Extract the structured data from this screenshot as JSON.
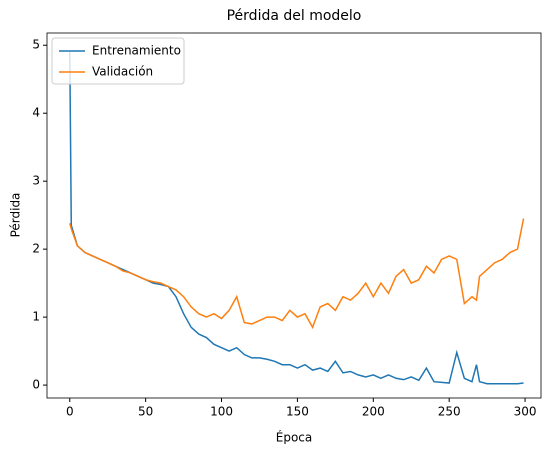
{
  "chart_data": {
    "type": "line",
    "title": "Pérdida del modelo",
    "x_label": "Época",
    "y_label": "Pérdida",
    "x": [
      0,
      1,
      5,
      10,
      15,
      20,
      25,
      30,
      35,
      40,
      45,
      50,
      55,
      60,
      65,
      70,
      75,
      80,
      85,
      90,
      95,
      100,
      105,
      110,
      115,
      120,
      125,
      130,
      135,
      140,
      145,
      150,
      155,
      160,
      165,
      170,
      175,
      180,
      185,
      190,
      195,
      200,
      205,
      210,
      215,
      220,
      225,
      230,
      235,
      240,
      245,
      250,
      255,
      260,
      265,
      268,
      270,
      275,
      280,
      285,
      290,
      295,
      299
    ],
    "series": [
      {
        "name": "Entrenamiento",
        "color": "#1f77b4",
        "values": [
          4.9,
          2.35,
          2.05,
          1.95,
          1.9,
          1.85,
          1.8,
          1.75,
          1.7,
          1.65,
          1.6,
          1.55,
          1.5,
          1.48,
          1.45,
          1.3,
          1.05,
          0.85,
          0.75,
          0.7,
          0.6,
          0.55,
          0.5,
          0.55,
          0.45,
          0.4,
          0.4,
          0.38,
          0.35,
          0.3,
          0.3,
          0.25,
          0.3,
          0.22,
          0.25,
          0.2,
          0.35,
          0.18,
          0.2,
          0.15,
          0.12,
          0.15,
          0.1,
          0.15,
          0.1,
          0.08,
          0.12,
          0.07,
          0.25,
          0.05,
          0.04,
          0.03,
          0.48,
          0.1,
          0.05,
          0.3,
          0.05,
          0.02,
          0.02,
          0.02,
          0.02,
          0.02,
          0.03
        ]
      },
      {
        "name": "Validación",
        "color": "#ff7f0e",
        "values": [
          2.38,
          2.3,
          2.05,
          1.95,
          1.9,
          1.85,
          1.8,
          1.75,
          1.68,
          1.65,
          1.6,
          1.55,
          1.52,
          1.5,
          1.45,
          1.4,
          1.3,
          1.15,
          1.05,
          1.0,
          1.05,
          0.98,
          1.1,
          1.3,
          0.92,
          0.9,
          0.95,
          1.0,
          1.0,
          0.95,
          1.1,
          1.0,
          1.05,
          0.85,
          1.15,
          1.2,
          1.1,
          1.3,
          1.25,
          1.35,
          1.5,
          1.3,
          1.5,
          1.35,
          1.6,
          1.7,
          1.5,
          1.55,
          1.75,
          1.65,
          1.85,
          1.9,
          1.85,
          1.2,
          1.3,
          1.25,
          1.6,
          1.7,
          1.8,
          1.85,
          1.95,
          2.0,
          2.45
        ]
      }
    ],
    "xlim": [
      -15,
      310.5
    ],
    "ylim": [
      -0.19,
      5.18
    ],
    "xticks": [
      0,
      50,
      100,
      150,
      200,
      250,
      300
    ],
    "yticks": [
      0,
      1,
      2,
      3,
      4,
      5
    ],
    "legend": "upper left"
  }
}
